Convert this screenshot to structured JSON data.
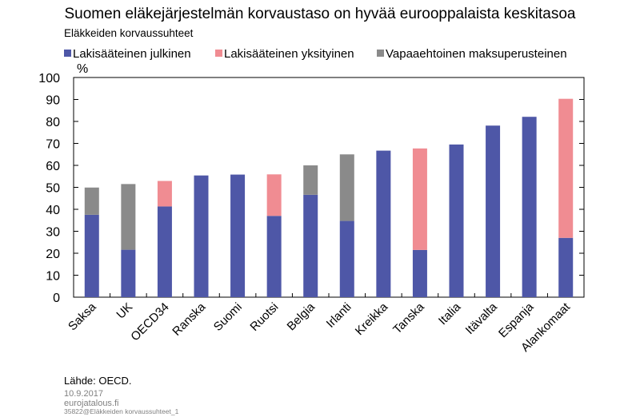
{
  "chart_data": {
    "type": "bar",
    "stacked": true,
    "title": "Suomen eläkejärjestelmän korvaustaso on hyvää eurooppalaista keskitasoa",
    "subtitle": "Eläkkeiden korvaussuhteet",
    "ylabel": "%",
    "ylim": [
      0,
      100
    ],
    "yticks": [
      0,
      10,
      20,
      30,
      40,
      50,
      60,
      70,
      80,
      90,
      100
    ],
    "grid": false,
    "legend_position": "top",
    "categories": [
      "Saksa",
      "UK",
      "OECD34",
      "Ranska",
      "Suomi",
      "Ruotsi",
      "Belgia",
      "Irlanti",
      "Kreikka",
      "Tanska",
      "Italia",
      "Itävalta",
      "Espanja",
      "Alankomaat"
    ],
    "series": [
      {
        "name": "Lakisääteinen julkinen",
        "color": "#4e57a7",
        "values": [
          37.5,
          21.6,
          41.3,
          55.4,
          55.8,
          37.0,
          46.6,
          34.7,
          66.7,
          21.5,
          69.5,
          78.1,
          82.1,
          27.0
        ]
      },
      {
        "name": "Lakisääteinen yksityinen",
        "color": "#f08c92",
        "values": [
          0,
          0,
          11.6,
          0,
          0,
          18.9,
          0,
          0,
          0,
          46.2,
          0,
          0,
          0,
          63.3
        ]
      },
      {
        "name": "Vapaaehtoinen maksuperusteinen",
        "color": "#8a8a8a",
        "values": [
          12.4,
          29.9,
          0,
          0,
          0,
          0,
          13.4,
          30.3,
          0,
          0,
          0,
          0,
          0,
          0
        ]
      }
    ]
  },
  "footer": {
    "source": "Lähde: OECD.",
    "date": "10.9.2017",
    "site": "eurojatalous.fi",
    "ref": "35822@Eläkkeiden korvaussuhteet_1"
  }
}
